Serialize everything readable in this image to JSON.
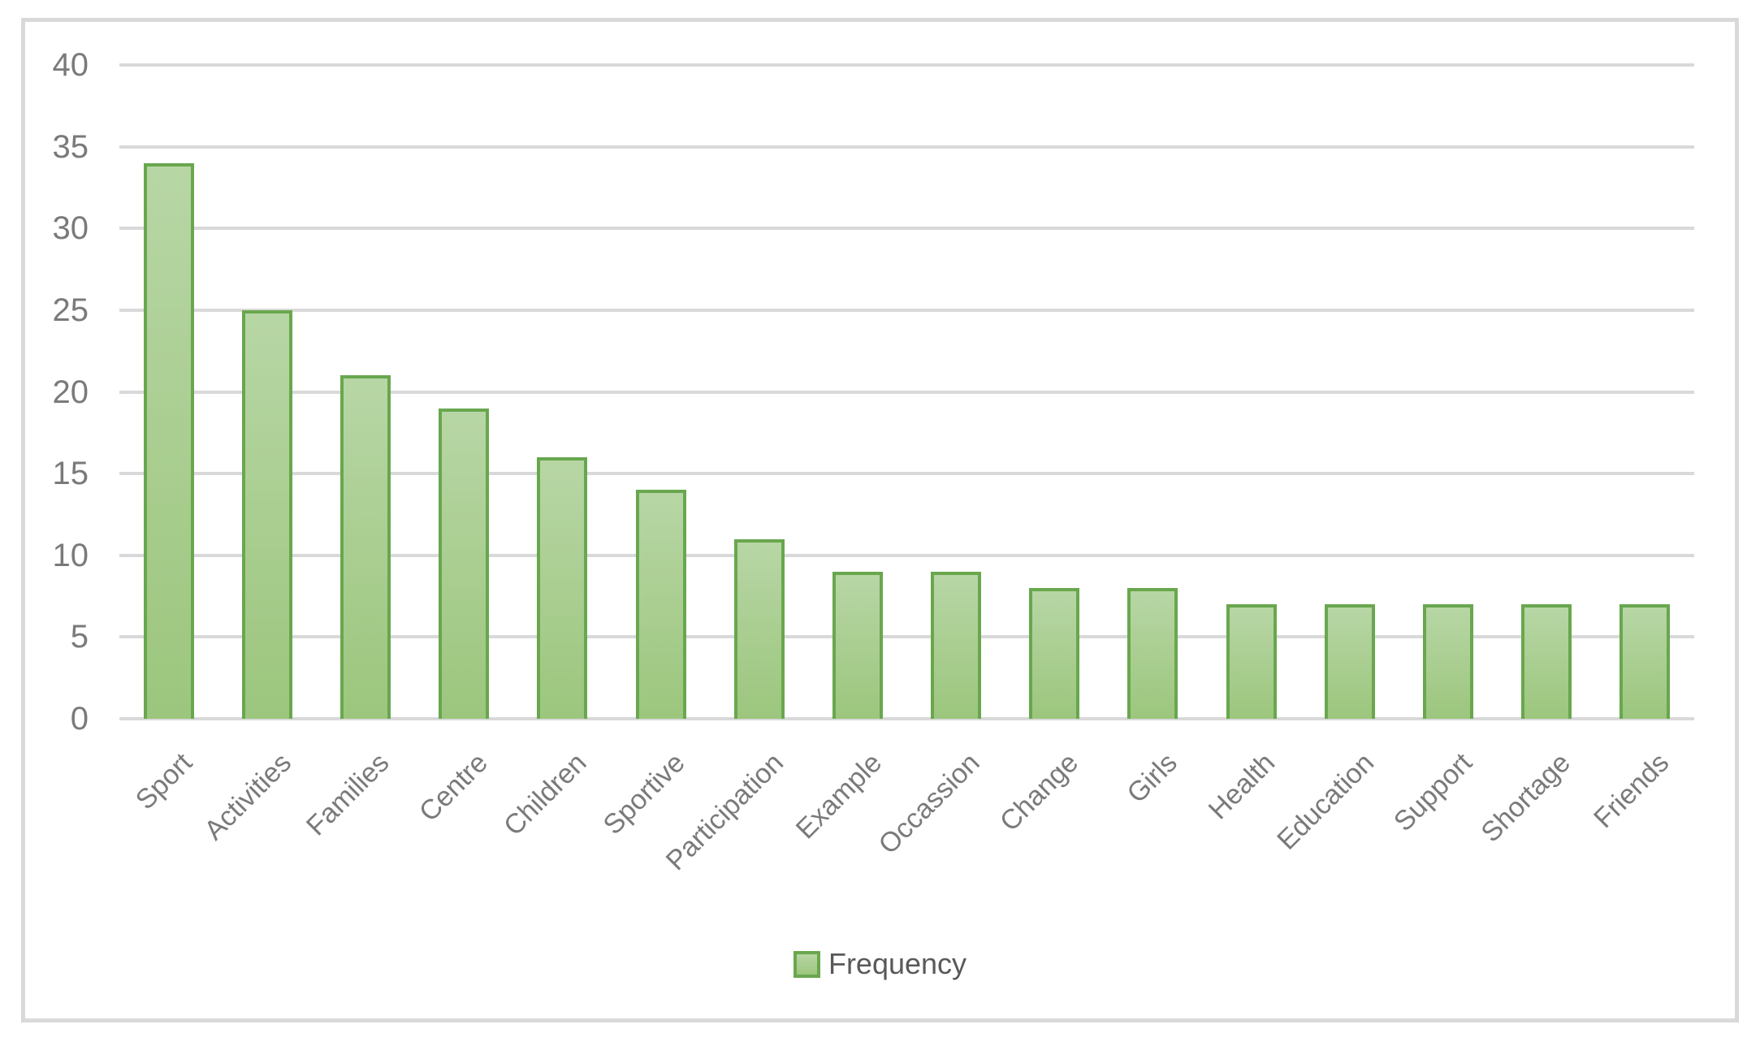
{
  "chart_data": {
    "type": "bar",
    "categories": [
      "Sport",
      "Activities",
      "Families",
      "Centre",
      "Children",
      "Sportive",
      "Participation",
      "Example",
      "Occassion",
      "Change",
      "Girls",
      "Health",
      "Education",
      "Support",
      "Shortage",
      "Friends"
    ],
    "series": [
      {
        "name": "Frequency",
        "values": [
          34,
          25,
          21,
          19,
          16,
          14,
          11,
          9,
          9,
          8,
          8,
          7,
          7,
          7,
          7,
          7
        ]
      }
    ],
    "title": "",
    "xlabel": "",
    "ylabel": "",
    "ylim": [
      0,
      40
    ],
    "yticks": [
      40,
      35,
      30,
      25,
      20,
      15,
      10,
      5,
      0
    ],
    "grid": true,
    "legend": {
      "label": "Frequency",
      "position": "bottom"
    },
    "colors": {
      "bar_fill_top": "#b7d6a5",
      "bar_fill_bottom": "#9cc67d",
      "bar_border": "#69a74e",
      "gridline": "#d9d9d9",
      "frame_border": "#d9d9d9",
      "axis_text": "#7a7a7a",
      "legend_text": "#595959"
    }
  }
}
